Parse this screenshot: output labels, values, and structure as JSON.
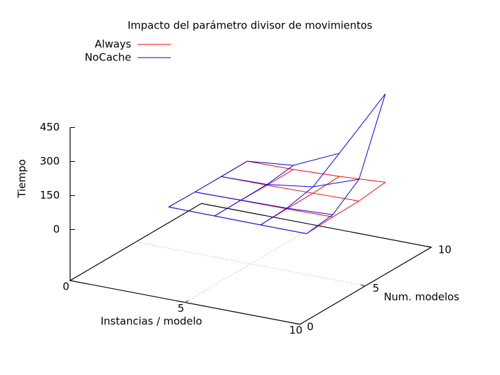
{
  "chart_data": {
    "type": "surface3d",
    "title": "Impacto del parámetro divisor de movimientos",
    "x_label": "Instancias / modelo",
    "y_label": "Num. modelos",
    "z_label": "Tiempo",
    "x": [
      2,
      4,
      6,
      8
    ],
    "y": [
      4,
      6,
      8,
      10
    ],
    "series": [
      {
        "name": "Always",
        "color": "#ff0000",
        "values": [
          [
            2,
            1,
            0,
            0
          ],
          [
            0,
            2,
            3,
            6
          ],
          [
            0,
            1,
            4,
            8
          ],
          [
            0,
            2,
            10,
            23
          ]
        ]
      },
      {
        "name": "NoCache",
        "color": "#0000ff",
        "values": [
          [
            2,
            1,
            0,
            0
          ],
          [
            0,
            3,
            6,
            16
          ],
          [
            0,
            4,
            32,
            104
          ],
          [
            0,
            20,
            112,
            412
          ]
        ]
      }
    ],
    "xlim": [
      0,
      10
    ],
    "xticks": [
      0,
      5,
      10
    ],
    "ylim": [
      0,
      10
    ],
    "yticks": [
      0,
      5,
      10
    ],
    "zlim": [
      0,
      450
    ],
    "zticks": [
      0,
      150,
      300,
      450
    ],
    "grid": true,
    "legend": "top-left"
  }
}
